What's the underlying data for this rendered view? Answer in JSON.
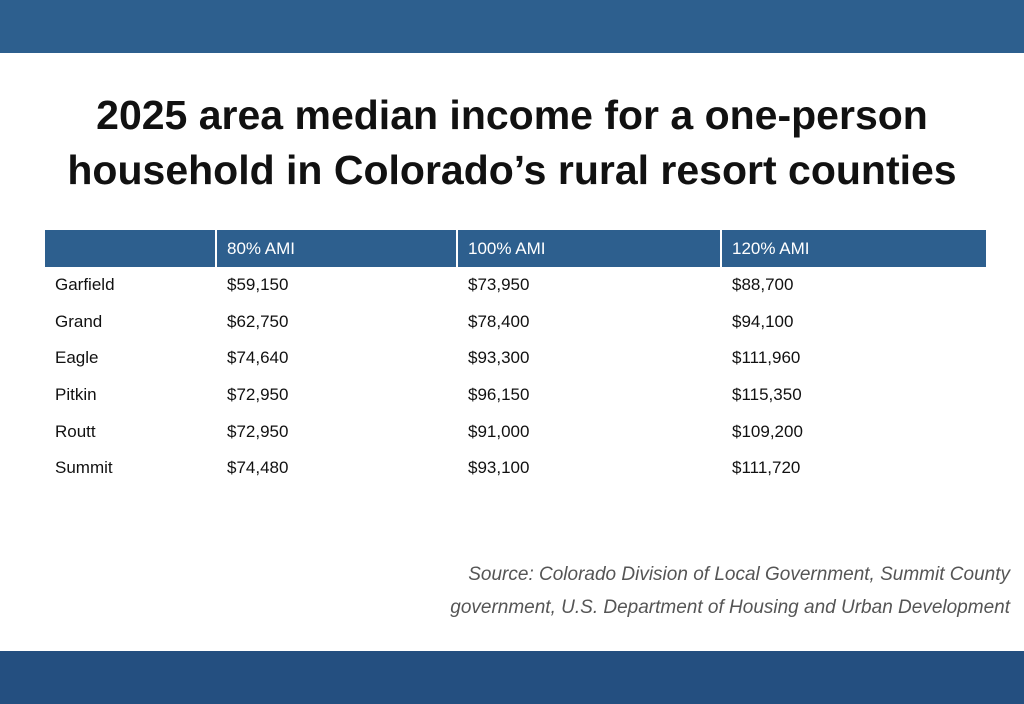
{
  "colors": {
    "header_band": "#2d5f8e",
    "footer_band": "#244f80",
    "table_header": "#2d5f8e",
    "title_text": "#111111",
    "source_text": "#555555"
  },
  "title": {
    "line1": "2025 area median income for a one-person",
    "line2": "household in Colorado’s rural resort counties"
  },
  "table": {
    "headers": [
      "",
      "80% AMI",
      "100% AMI",
      "120% AMI"
    ]
  },
  "chart_data": {
    "type": "table",
    "title": "2025 area median income for a one-person household in Colorado’s rural resort counties",
    "columns": [
      "",
      "80% AMI",
      "100% AMI",
      "120% AMI"
    ],
    "rows": [
      [
        "Garfield",
        "$59,150",
        "$73,950",
        "$88,700"
      ],
      [
        "Grand",
        "$62,750",
        "$78,400",
        "$94,100"
      ],
      [
        "Eagle",
        "$74,640",
        "$93,300",
        "$111,960"
      ],
      [
        "Pitkin",
        "$72,950",
        "$96,150",
        "$115,350"
      ],
      [
        "Routt",
        "$72,950",
        "$91,000",
        "$109,200"
      ],
      [
        "Summit",
        "$74,480",
        "$93,100",
        "$111,720"
      ]
    ]
  },
  "source": {
    "line1": "Source: Colorado Division of Local Government, Summit County",
    "line2": "government, U.S. Department of Housing and Urban Development"
  }
}
